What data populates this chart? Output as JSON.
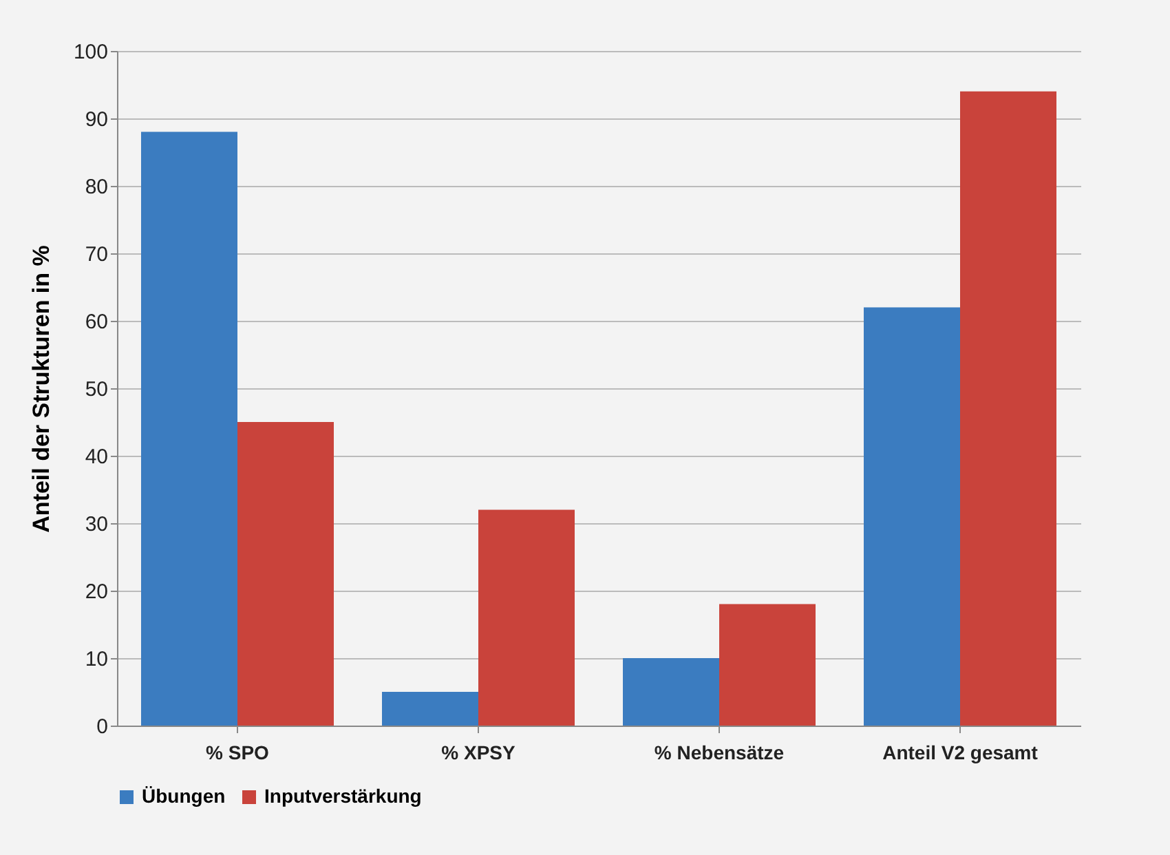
{
  "chart_data": {
    "type": "bar",
    "ylabel": "Anteil der Strukturen in %",
    "categories": [
      "% SPO",
      "% XPSY",
      "% Nebensätze",
      "Anteil V2 gesamt"
    ],
    "series": [
      {
        "name": "Übungen",
        "color": "#3b7cc0",
        "values": [
          88,
          5,
          10,
          62
        ]
      },
      {
        "name": "Inputverstärkung",
        "color": "#c9433b",
        "values": [
          45,
          32,
          18,
          94
        ]
      }
    ],
    "ylim": [
      0,
      100
    ],
    "yticks": [
      0,
      10,
      20,
      30,
      40,
      50,
      60,
      70,
      80,
      90,
      100
    ],
    "grid": "y",
    "legend": "bottom"
  }
}
